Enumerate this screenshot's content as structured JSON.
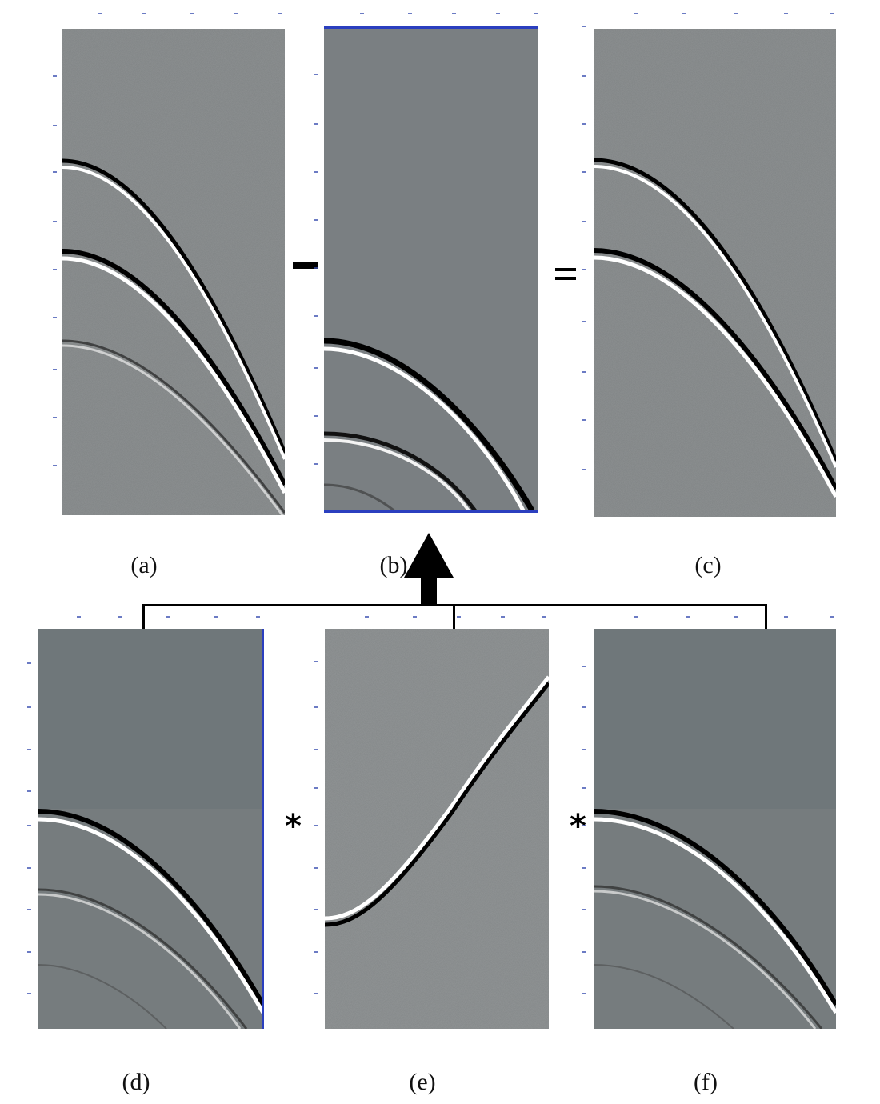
{
  "operators": {
    "minus": "-",
    "equals": "=",
    "conv_1": "*",
    "conv_2": "*"
  },
  "panels": [
    {
      "id": "a",
      "label": "(a)",
      "style": "noisy",
      "events": "abc"
    },
    {
      "id": "b",
      "label": "(b)",
      "style": "clean",
      "events": "bc"
    },
    {
      "id": "c",
      "label": "(c)",
      "style": "noisy",
      "events": "ab"
    },
    {
      "id": "d",
      "label": "(d)",
      "style": "smooth",
      "events": "primary"
    },
    {
      "id": "e",
      "label": "(e)",
      "style": "noisy",
      "events": "rising"
    },
    {
      "id": "f",
      "label": "(f)",
      "style": "smooth",
      "events": "primary"
    }
  ],
  "colors": {
    "seismic_gray": "#7b7f80",
    "axis_tick": "#3a4fb0",
    "arrow": "#000000"
  }
}
